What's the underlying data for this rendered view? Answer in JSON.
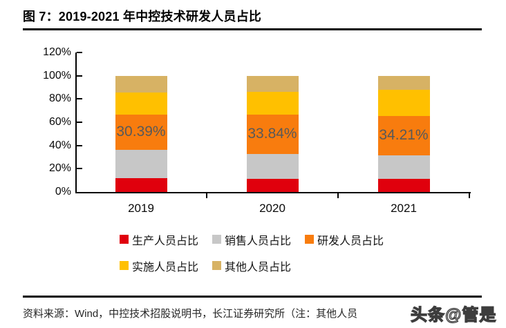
{
  "figure": {
    "title": "图 7：2019-2021 年中控技术研发人员占比",
    "source_note": "资料来源：Wind，中控技术招股说明书，长江证券研究所（注：其他人员",
    "watermark": "头条@管是"
  },
  "chart_data": {
    "type": "bar",
    "stacked": true,
    "title": "2019-2021 年中控技术研发人员占比",
    "categories": [
      "2019",
      "2020",
      "2021"
    ],
    "series": [
      {
        "name": "生产人员占比",
        "color": "#e0000d",
        "values": [
          12.0,
          11.0,
          11.0
        ]
      },
      {
        "name": "销售人员占比",
        "color": "#c7c7c7",
        "values": [
          24.0,
          21.5,
          20.3
        ]
      },
      {
        "name": "研发人员占比",
        "color": "#f87c0e",
        "values": [
          30.39,
          33.84,
          34.21
        ],
        "data_labels": [
          "30.39%",
          "33.84%",
          "34.21%"
        ]
      },
      {
        "name": "实施人员占比",
        "color": "#ffc000",
        "values": [
          19.0,
          20.0,
          22.5
        ]
      },
      {
        "name": "其他人员占比",
        "color": "#d7b264",
        "values": [
          14.61,
          13.66,
          11.99
        ]
      }
    ],
    "ylim": [
      0,
      120
    ],
    "ytick_step": 20,
    "ytick_labels": [
      "120%",
      "100%",
      "80%",
      "60%",
      "40%",
      "20%",
      "0%"
    ],
    "xlabel": "",
    "ylabel": "",
    "grid": false,
    "legend_position": "bottom",
    "data_label_color": "#595959",
    "axis_color": "#000000"
  }
}
